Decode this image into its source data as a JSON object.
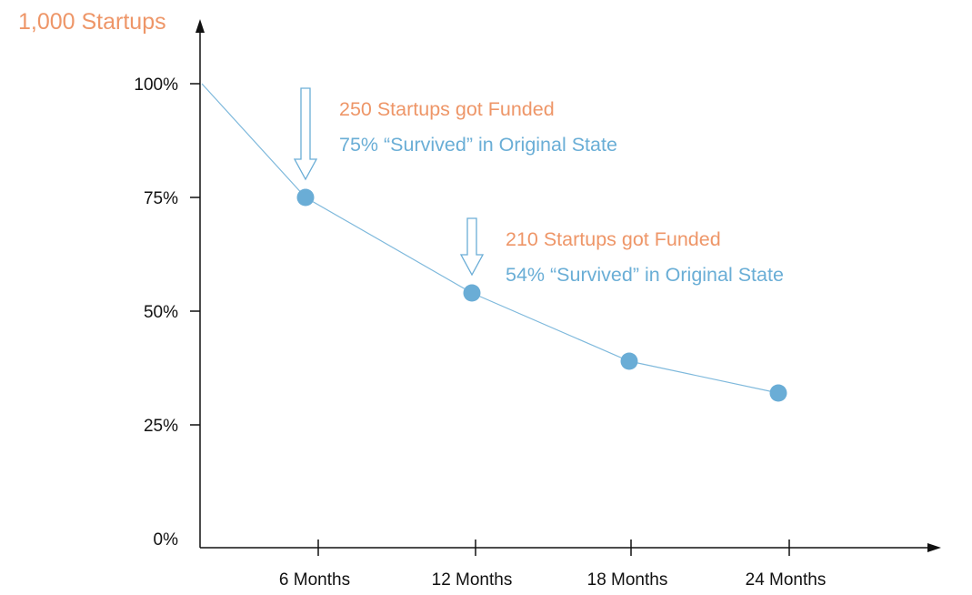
{
  "chart_data": {
    "type": "line",
    "ylabel": "1,000 Startups",
    "xlabel": "",
    "ylim": [
      0,
      100
    ],
    "y_ticks": [
      "0%",
      "25%",
      "50%",
      "75%",
      "100%"
    ],
    "x_ticks": [
      "6 Months",
      "12 Months",
      "18 Months",
      "24 Months"
    ],
    "series": [
      {
        "points": [
          {
            "x": 0,
            "y": 100
          },
          {
            "x": 6,
            "y": 75
          },
          {
            "x": 12,
            "y": 54
          },
          {
            "x": 18,
            "y": 39
          },
          {
            "x": 24,
            "y": 32
          }
        ]
      }
    ],
    "annotations": [
      {
        "at_x": 6,
        "at_y": 75,
        "funded": "250 Startups got Funded",
        "survived": "75% “Survived” in Original State"
      },
      {
        "at_x": 12,
        "at_y": 54,
        "funded": "210 Startups got Funded",
        "survived": "54% “Survived” in Original State"
      }
    ],
    "colors": {
      "line": "#7fb9dc",
      "marker": "#6aadd6",
      "funded_text": "#ee9668",
      "survived_text": "#6aaed6",
      "axis": "#111111"
    },
    "grid": false,
    "legend": "none"
  }
}
